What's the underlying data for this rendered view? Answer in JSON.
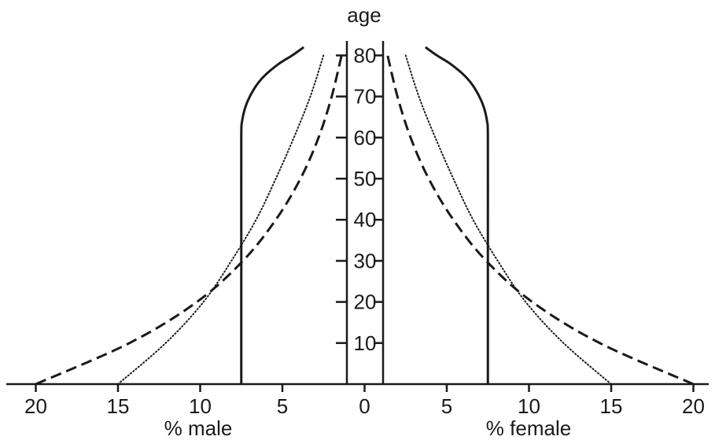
{
  "chart_data": {
    "type": "line",
    "title": "",
    "age_axis_label": "age",
    "left_axis_label": "% male",
    "right_axis_label": "% female",
    "x_ticks": [
      20,
      15,
      10,
      5,
      0,
      5,
      10,
      15,
      20
    ],
    "age_ticks": [
      10,
      20,
      30,
      40,
      50,
      60,
      70,
      80
    ],
    "xlim_percent_each_side": [
      0,
      20
    ],
    "ylim_age": [
      0,
      80
    ],
    "grid": false,
    "legend": "none",
    "line_color": "#1a1a1a",
    "series": [
      {
        "style": "solid",
        "age": [
          0,
          20,
          40,
          60,
          64,
          68,
          72,
          75,
          78,
          80,
          82
        ],
        "percent": [
          7.5,
          7.5,
          7.5,
          7.5,
          7.45,
          7.2,
          6.7,
          6.1,
          5.2,
          4.4,
          3.7
        ]
      },
      {
        "style": "dotted",
        "age": [
          0,
          10,
          20,
          30,
          40,
          50,
          60,
          70,
          80
        ],
        "percent": [
          15.0,
          12.1,
          9.8,
          8.1,
          6.6,
          5.4,
          4.3,
          3.3,
          2.5
        ]
      },
      {
        "style": "dashed",
        "age": [
          0,
          10,
          20,
          30,
          40,
          50,
          60,
          70,
          80
        ],
        "percent": [
          20.0,
          14.3,
          10.2,
          7.4,
          5.4,
          3.9,
          2.8,
          2.0,
          1.4
        ]
      }
    ]
  }
}
